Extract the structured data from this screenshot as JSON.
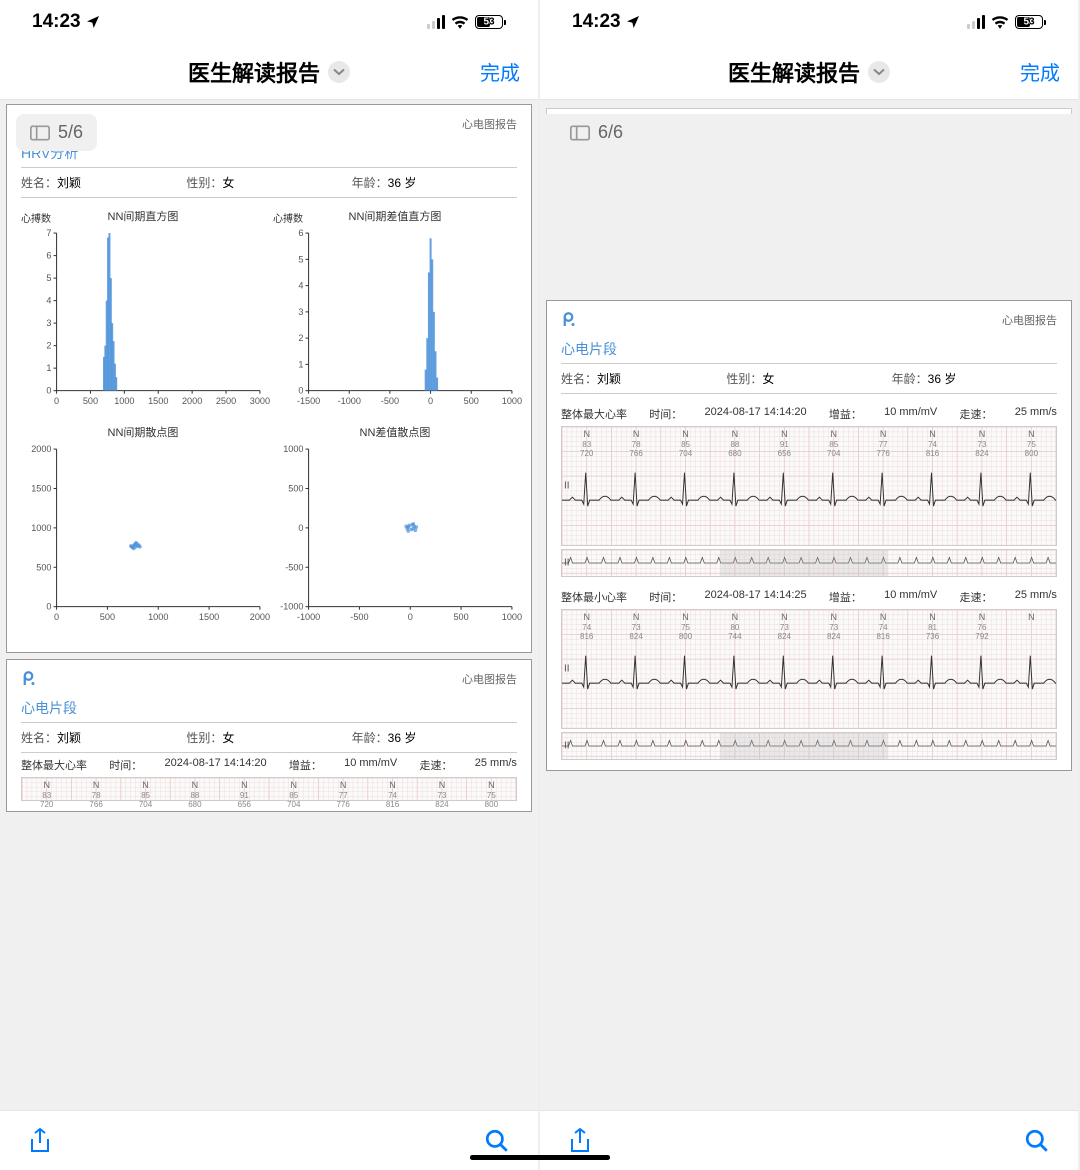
{
  "status": {
    "time": "14:23",
    "battery": "53"
  },
  "nav": {
    "title": "医生解读报告",
    "done": "完成"
  },
  "pages": {
    "left": "5/6",
    "right": "6/6"
  },
  "report": {
    "type": "心电图报告",
    "section_hrv": "HRV分析",
    "section_ecg": "心电片段",
    "patient": {
      "name_label": "姓名：",
      "name": "刘颖",
      "sex_label": "性别：",
      "sex": "女",
      "age_label": "年龄：",
      "age": "36 岁"
    }
  },
  "charts": {
    "ylabel": "心搏数",
    "hist1": {
      "title": "NN间期直方图",
      "xticks": [
        0,
        500,
        1000,
        1500,
        2000,
        2500,
        3000
      ],
      "yticks": [
        0,
        1,
        2,
        3,
        4,
        5,
        6,
        7
      ],
      "bars": [
        {
          "x": 700,
          "y": 1.5
        },
        {
          "x": 720,
          "y": 2
        },
        {
          "x": 740,
          "y": 4
        },
        {
          "x": 760,
          "y": 6.8
        },
        {
          "x": 780,
          "y": 7
        },
        {
          "x": 800,
          "y": 5
        },
        {
          "x": 820,
          "y": 3
        },
        {
          "x": 840,
          "y": 2.2
        },
        {
          "x": 860,
          "y": 1.2
        },
        {
          "x": 880,
          "y": 0.6
        }
      ],
      "bar_color": "#4a90d9",
      "xlim": [
        0,
        3000
      ],
      "ylim": [
        0,
        7
      ]
    },
    "hist2": {
      "title": "NN间期差值直方图",
      "xticks": [
        -1500,
        -1000,
        -500,
        0,
        500,
        1000
      ],
      "yticks": [
        0,
        1,
        2,
        3,
        4,
        5,
        6
      ],
      "bars": [
        {
          "x": -60,
          "y": 0.8
        },
        {
          "x": -40,
          "y": 2
        },
        {
          "x": -20,
          "y": 4.5
        },
        {
          "x": 0,
          "y": 5.8
        },
        {
          "x": 20,
          "y": 5
        },
        {
          "x": 40,
          "y": 3
        },
        {
          "x": 60,
          "y": 1.5
        },
        {
          "x": 80,
          "y": 0.5
        }
      ],
      "bar_color": "#4a90d9",
      "xlim": [
        -1500,
        1000
      ],
      "ylim": [
        0,
        6
      ]
    },
    "scatter1": {
      "title": "NN间期散点图",
      "xticks": [
        0,
        500,
        1000,
        1500,
        2000
      ],
      "yticks": [
        0,
        500,
        1000,
        1500,
        2000
      ],
      "points": [
        {
          "x": 740,
          "y": 760
        },
        {
          "x": 760,
          "y": 780
        },
        {
          "x": 780,
          "y": 760
        },
        {
          "x": 770,
          "y": 790
        },
        {
          "x": 800,
          "y": 770
        },
        {
          "x": 750,
          "y": 750
        },
        {
          "x": 790,
          "y": 800
        },
        {
          "x": 810,
          "y": 780
        },
        {
          "x": 760,
          "y": 740
        },
        {
          "x": 820,
          "y": 760
        },
        {
          "x": 730,
          "y": 770
        },
        {
          "x": 780,
          "y": 810
        }
      ],
      "point_color": "#4a90d9",
      "xlim": [
        0,
        2000
      ],
      "ylim": [
        0,
        2000
      ]
    },
    "scatter2": {
      "title": "NN差值散点图",
      "xticks": [
        -1000,
        -500,
        0,
        500,
        1000
      ],
      "yticks": [
        -1000,
        -500,
        0,
        500,
        1000
      ],
      "points": [
        {
          "x": -20,
          "y": 10
        },
        {
          "x": 10,
          "y": -20
        },
        {
          "x": 30,
          "y": -10
        },
        {
          "x": -10,
          "y": 30
        },
        {
          "x": 40,
          "y": 20
        },
        {
          "x": -30,
          "y": -10
        },
        {
          "x": 50,
          "y": -30
        },
        {
          "x": 20,
          "y": 40
        },
        {
          "x": -40,
          "y": 20
        },
        {
          "x": 60,
          "y": 10
        },
        {
          "x": -20,
          "y": -40
        },
        {
          "x": 30,
          "y": 50
        }
      ],
      "point_color": "#4a90d9",
      "xlim": [
        -1000,
        1000
      ],
      "ylim": [
        -1000,
        1000
      ]
    }
  },
  "ecg": {
    "strips": [
      {
        "label": "整体最大心率",
        "time_label": "时间：",
        "time": "2024-08-17 14:14:20",
        "gain_label": "增益：",
        "gain": "10 mm/mV",
        "speed_label": "走速：",
        "speed": "25 mm/s",
        "beats": [
          {
            "n": "N",
            "v1": "83",
            "v2": "720"
          },
          {
            "n": "N",
            "v1": "78",
            "v2": "766"
          },
          {
            "n": "N",
            "v1": "85",
            "v2": "704"
          },
          {
            "n": "N",
            "v1": "88",
            "v2": "680"
          },
          {
            "n": "N",
            "v1": "91",
            "v2": "656"
          },
          {
            "n": "N",
            "v1": "85",
            "v2": "704"
          },
          {
            "n": "N",
            "v1": "77",
            "v2": "776"
          },
          {
            "n": "N",
            "v1": "74",
            "v2": "816"
          },
          {
            "n": "N",
            "v1": "73",
            "v2": "824"
          },
          {
            "n": "N",
            "v1": "75",
            "v2": "800"
          }
        ]
      },
      {
        "label": "整体最小心率",
        "time_label": "时间：",
        "time": "2024-08-17 14:14:25",
        "gain_label": "增益：",
        "gain": "10 mm/mV",
        "speed_label": "走速：",
        "speed": "25 mm/s",
        "beats": [
          {
            "n": "N",
            "v1": "74",
            "v2": "816"
          },
          {
            "n": "N",
            "v1": "73",
            "v2": "824"
          },
          {
            "n": "N",
            "v1": "75",
            "v2": "800"
          },
          {
            "n": "N",
            "v1": "80",
            "v2": "744"
          },
          {
            "n": "N",
            "v1": "73",
            "v2": "824"
          },
          {
            "n": "N",
            "v1": "73",
            "v2": "824"
          },
          {
            "n": "N",
            "v1": "74",
            "v2": "816"
          },
          {
            "n": "N",
            "v1": "81",
            "v2": "736"
          },
          {
            "n": "N",
            "v1": "76",
            "v2": "792"
          },
          {
            "n": "N",
            "v1": "",
            "v2": ""
          }
        ]
      }
    ],
    "grid_color": "#f0d4d4",
    "grid_major": "#e8c4c4",
    "wave_color": "#333"
  }
}
